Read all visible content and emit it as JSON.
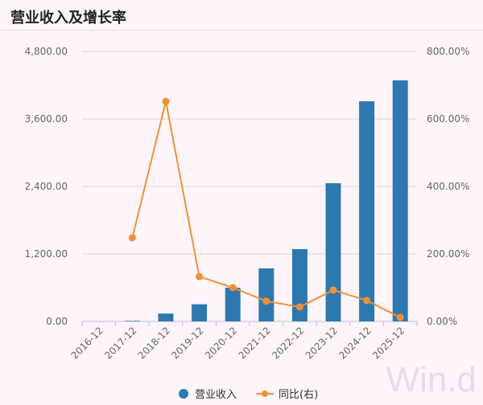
{
  "title": "营业收入及增长率",
  "watermark": "Win.d",
  "chart_data": {
    "type": "bar+line",
    "categories": [
      "2016-12",
      "2017-12",
      "2018-12",
      "2019-12",
      "2020-12",
      "2021-12",
      "2022-12",
      "2023-12",
      "2024-12",
      "2025-12"
    ],
    "series": [
      {
        "name": "营业收入",
        "type": "bar",
        "axis": "left",
        "color": "#2e78b0",
        "values": [
          0,
          10,
          140,
          305,
          600,
          943,
          1286,
          2457,
          3914,
          4286
        ]
      },
      {
        "name": "同比(右)",
        "type": "line",
        "axis": "right",
        "color": "#f0913a",
        "values": [
          null,
          248,
          652,
          133,
          100,
          60,
          43,
          93,
          62,
          12
        ]
      }
    ],
    "ylim_left": [
      0,
      4800
    ],
    "yticks_left": [
      "0.00",
      "1,200.00",
      "2,400.00",
      "3,600.00",
      "4,800.00"
    ],
    "ylim_right": [
      0,
      800
    ],
    "yticks_right": [
      "0.00%",
      "200.00%",
      "400.00%",
      "600.00%",
      "800.00%"
    ],
    "grid": true,
    "legend": "bottom"
  }
}
